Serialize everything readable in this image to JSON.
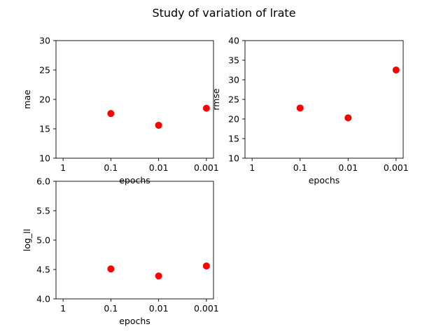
{
  "figure": {
    "title": "Study of variation of lrate"
  },
  "chart_data": [
    {
      "type": "scatter",
      "xlabel": "epochs",
      "ylabel": "mae",
      "categories": [
        "1",
        "0.1",
        "0.01",
        "0.001"
      ],
      "ylim": [
        10,
        30
      ],
      "yticks": [
        10,
        15,
        20,
        25,
        30
      ],
      "ytick_labels": [
        "10",
        "15",
        "20",
        "25",
        "30"
      ],
      "marker_color": "#ff0000",
      "series": [
        {
          "x": [
            "0.1",
            "0.01",
            "0.001"
          ],
          "values": [
            17.6,
            15.6,
            18.5
          ]
        }
      ]
    },
    {
      "type": "scatter",
      "xlabel": "epochs",
      "ylabel": "rmse",
      "categories": [
        "1",
        "0.1",
        "0.01",
        "0.001"
      ],
      "ylim": [
        10,
        40
      ],
      "yticks": [
        10,
        15,
        20,
        25,
        30,
        35,
        40
      ],
      "ytick_labels": [
        "10",
        "15",
        "20",
        "25",
        "30",
        "35",
        "40"
      ],
      "marker_color": "#ff0000",
      "series": [
        {
          "x": [
            "0.1",
            "0.01",
            "0.001"
          ],
          "values": [
            22.8,
            20.3,
            32.5
          ]
        }
      ]
    },
    {
      "type": "scatter",
      "xlabel": "epochs",
      "ylabel": "log_ll",
      "categories": [
        "1",
        "0.1",
        "0.01",
        "0.001"
      ],
      "ylim": [
        4.0,
        6.0
      ],
      "yticks": [
        4.0,
        4.5,
        5.0,
        5.5,
        6.0
      ],
      "ytick_labels": [
        "4.0",
        "4.5",
        "5.0",
        "5.5",
        "6.0"
      ],
      "marker_color": "#ff0000",
      "series": [
        {
          "x": [
            "0.1",
            "0.01",
            "0.001"
          ],
          "values": [
            4.51,
            4.39,
            4.56
          ]
        }
      ]
    }
  ]
}
